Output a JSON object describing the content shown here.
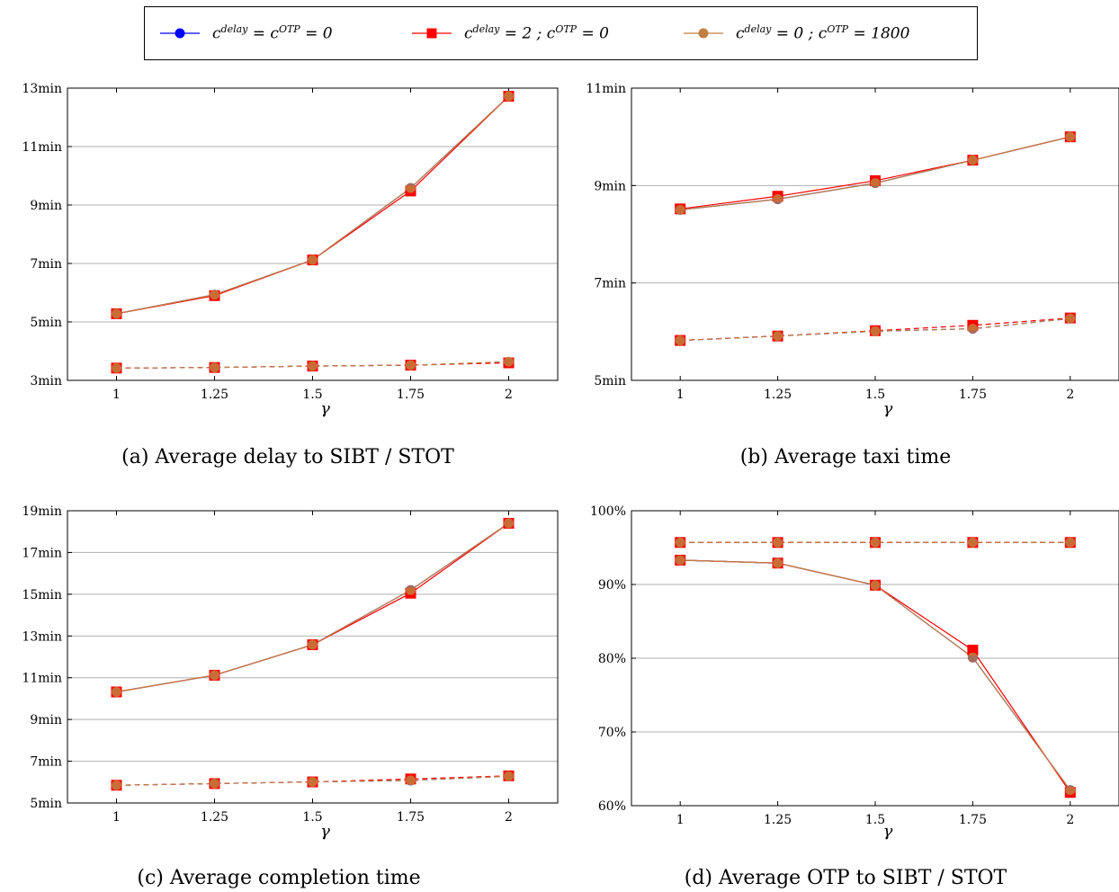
{
  "legend": {
    "entries": [
      {
        "c_delay": "delay",
        "c_otp": "OTP",
        "text": "= 0",
        "series_key": "s0",
        "marker": "circle",
        "color": "#0000ff"
      },
      {
        "c_delay": "delay",
        "c_otp": "OTP",
        "text": "= 2 ;",
        "text2": "= 0",
        "series_key": "s1",
        "marker": "square",
        "color": "#ff0000"
      },
      {
        "c_delay": "delay",
        "c_otp": "OTP",
        "text": "= 0 ;",
        "text2": "= 1800",
        "series_key": "s2",
        "marker": "circle",
        "color": "#c08040"
      }
    ]
  },
  "chart_data": [
    {
      "type": "line",
      "caption": "(a) Average delay to SIBT / STOT",
      "xlabel": "γ",
      "x": [
        1,
        1.25,
        1.5,
        1.75,
        2
      ],
      "x_ticks": [
        "1",
        "1.25",
        "1.5",
        "1.75",
        "2"
      ],
      "ylim": [
        3,
        13
      ],
      "y_ticks": [
        3,
        5,
        7,
        9,
        11,
        13
      ],
      "y_tick_labels": [
        "3min",
        "5min",
        "7min",
        "9min",
        "11min",
        "13min"
      ],
      "grid": true,
      "series": [
        {
          "key": "s0",
          "style": "solid",
          "values": [
            5.28,
            5.93,
            7.12,
            9.58,
            12.72
          ]
        },
        {
          "key": "s1",
          "style": "solid",
          "values": [
            5.28,
            5.9,
            7.12,
            9.48,
            12.72
          ]
        },
        {
          "key": "s2",
          "style": "solid",
          "values": [
            5.28,
            5.93,
            7.12,
            9.58,
            12.72
          ]
        },
        {
          "key": "s0",
          "style": "dashed",
          "values": [
            3.42,
            3.44,
            3.49,
            3.52,
            3.62
          ]
        },
        {
          "key": "s1",
          "style": "dashed",
          "values": [
            3.42,
            3.44,
            3.49,
            3.52,
            3.6
          ]
        },
        {
          "key": "s2",
          "style": "dashed",
          "values": [
            3.42,
            3.44,
            3.49,
            3.52,
            3.64
          ]
        }
      ]
    },
    {
      "type": "line",
      "caption": "(b) Average taxi time",
      "xlabel": "γ",
      "x": [
        1,
        1.25,
        1.5,
        1.75,
        2
      ],
      "x_ticks": [
        "1",
        "1.25",
        "1.5",
        "1.75",
        "2"
      ],
      "ylim": [
        5,
        11
      ],
      "y_ticks": [
        5,
        7,
        9,
        11
      ],
      "y_tick_labels": [
        "5min",
        "7min",
        "9min",
        "11min"
      ],
      "grid": true,
      "series": [
        {
          "key": "s0",
          "style": "solid",
          "values": [
            8.5,
            8.72,
            9.05,
            9.52,
            10.0
          ]
        },
        {
          "key": "s1",
          "style": "solid",
          "values": [
            8.52,
            8.78,
            9.1,
            9.52,
            10.0
          ]
        },
        {
          "key": "s2",
          "style": "solid",
          "values": [
            8.5,
            8.72,
            9.05,
            9.52,
            10.0
          ]
        },
        {
          "key": "s0",
          "style": "dashed",
          "values": [
            5.82,
            5.91,
            6.01,
            6.06,
            6.27
          ]
        },
        {
          "key": "s1",
          "style": "dashed",
          "values": [
            5.82,
            5.91,
            6.02,
            6.13,
            6.28
          ]
        },
        {
          "key": "s2",
          "style": "dashed",
          "values": [
            5.82,
            5.91,
            6.01,
            6.06,
            6.27
          ]
        }
      ]
    },
    {
      "type": "line",
      "caption": "(c) Average completion time",
      "xlabel": "γ",
      "x": [
        1,
        1.25,
        1.5,
        1.75,
        2
      ],
      "x_ticks": [
        "1",
        "1.25",
        "1.5",
        "1.75",
        "2"
      ],
      "ylim": [
        5,
        19
      ],
      "y_ticks": [
        5,
        7,
        9,
        11,
        13,
        15,
        17,
        19
      ],
      "y_tick_labels": [
        "5min",
        "7min",
        "9min",
        "11min",
        "13min",
        "15min",
        "17min",
        "19min"
      ],
      "grid": true,
      "series": [
        {
          "key": "s0",
          "style": "solid",
          "values": [
            10.32,
            11.12,
            12.58,
            15.2,
            18.4
          ]
        },
        {
          "key": "s1",
          "style": "solid",
          "values": [
            10.32,
            11.12,
            12.58,
            15.05,
            18.4
          ]
        },
        {
          "key": "s2",
          "style": "solid",
          "values": [
            10.32,
            11.12,
            12.58,
            15.2,
            18.4
          ]
        },
        {
          "key": "s0",
          "style": "dashed",
          "values": [
            5.85,
            5.93,
            6.01,
            6.08,
            6.28
          ]
        },
        {
          "key": "s1",
          "style": "dashed",
          "values": [
            5.85,
            5.93,
            6.01,
            6.15,
            6.3
          ]
        },
        {
          "key": "s2",
          "style": "dashed",
          "values": [
            5.85,
            5.93,
            6.01,
            6.08,
            6.28
          ]
        }
      ]
    },
    {
      "type": "line",
      "caption": "(d) Average OTP to SIBT / STOT",
      "xlabel": "γ",
      "x": [
        1,
        1.25,
        1.5,
        1.75,
        2
      ],
      "x_ticks": [
        "1",
        "1.25",
        "1.5",
        "1.75",
        "2"
      ],
      "ylim": [
        60,
        100
      ],
      "y_ticks": [
        60,
        70,
        80,
        90,
        100
      ],
      "y_tick_labels": [
        "60%",
        "70%",
        "80%",
        "90%",
        "100%"
      ],
      "grid": true,
      "series": [
        {
          "key": "s0",
          "style": "solid",
          "values": [
            93.3,
            92.9,
            89.9,
            80.1,
            62.1
          ]
        },
        {
          "key": "s1",
          "style": "solid",
          "values": [
            93.3,
            92.9,
            89.9,
            81.1,
            61.8
          ]
        },
        {
          "key": "s2",
          "style": "solid",
          "values": [
            93.3,
            92.9,
            89.9,
            80.1,
            62.1
          ]
        },
        {
          "key": "s0",
          "style": "dashed",
          "values": [
            95.7,
            95.7,
            95.7,
            95.7,
            95.7
          ]
        },
        {
          "key": "s1",
          "style": "dashed",
          "values": [
            95.7,
            95.7,
            95.7,
            95.7,
            95.7
          ]
        },
        {
          "key": "s2",
          "style": "dashed",
          "values": [
            95.7,
            95.7,
            95.7,
            95.7,
            95.7
          ]
        }
      ]
    }
  ]
}
